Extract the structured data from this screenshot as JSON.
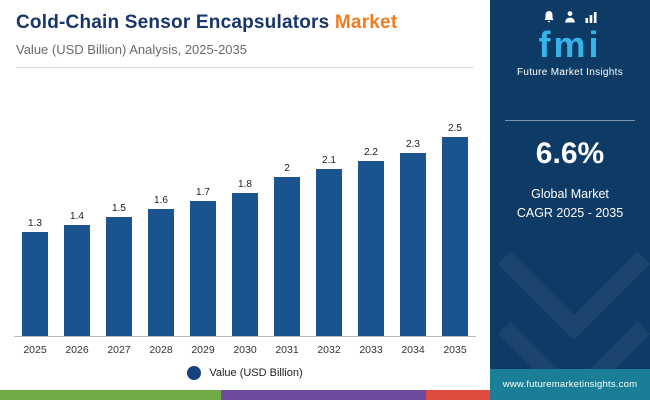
{
  "header": {
    "title_main": "Cold-Chain Sensor Encapsulators",
    "title_accent": "Market",
    "subtitle": "Value (USD Billion) Analysis, 2025-2035"
  },
  "chart_data": {
    "type": "bar",
    "categories": [
      "2025",
      "2026",
      "2027",
      "2028",
      "2029",
      "2030",
      "2031",
      "2032",
      "2033",
      "2034",
      "2035"
    ],
    "values": [
      1.3,
      1.4,
      1.5,
      1.6,
      1.7,
      1.8,
      2,
      2.1,
      2.2,
      2.3,
      2.5
    ],
    "data_labels": [
      "1.3",
      "1.4",
      "1.5",
      "1.6",
      "1.7",
      "1.8",
      "2",
      "2.1",
      "2.2",
      "2.3",
      "2.5"
    ],
    "title": "Cold-Chain Sensor Encapsulators Market",
    "xlabel": "",
    "ylabel": "Value (USD Billion)",
    "ylim": [
      0,
      2.7
    ],
    "grid": false,
    "legend_label": "Value (USD Billion)",
    "legend_position": "bottom",
    "bar_color": "#1b5390"
  },
  "legend": {
    "marker_color": "#15427e"
  },
  "sidebar": {
    "logo_text": "fmi",
    "brand_name": "Future Market Insights",
    "cagr_value": "6.6%",
    "cagr_label_line1": "Global Market",
    "cagr_label_line2": "CAGR 2025 - 2035",
    "website": "www.futuremarketinsights.com",
    "colors": {
      "background": "#0e3a66",
      "logo_accent": "#35b4e8",
      "footer_bar": "#1a7f96"
    }
  },
  "footer_stripe": {
    "colors": [
      "#6faa44",
      "#6d4a9e",
      "#de4b3f"
    ]
  }
}
